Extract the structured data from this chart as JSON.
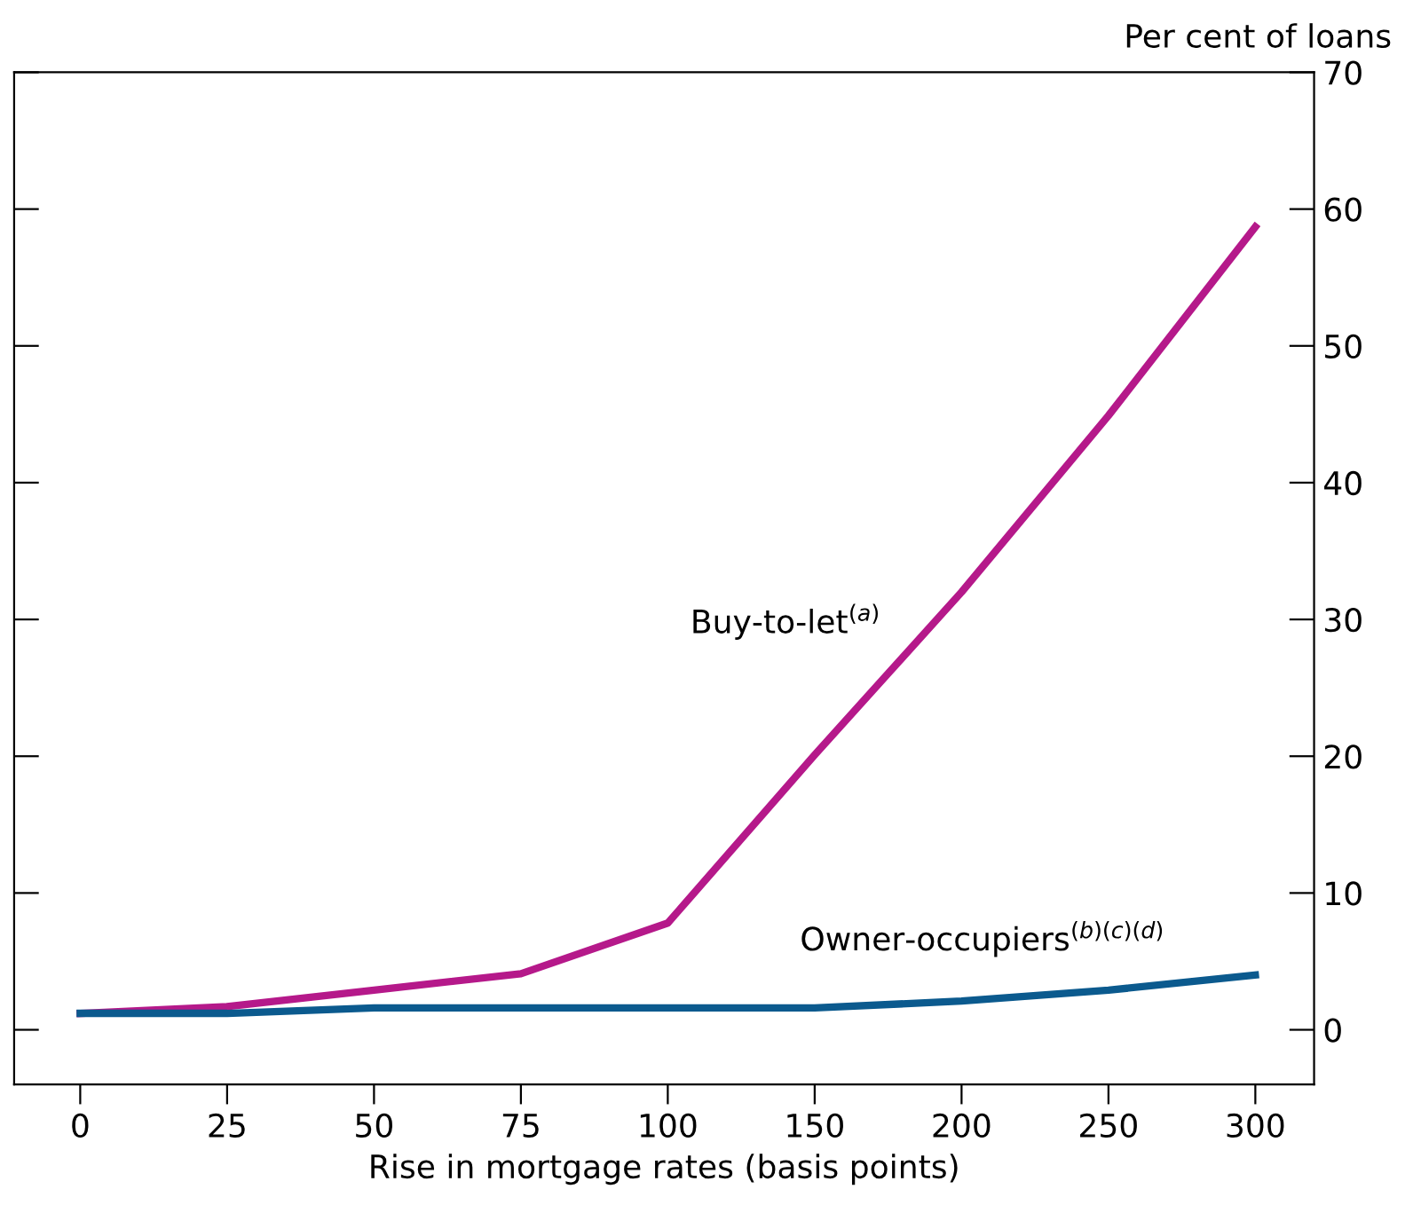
{
  "chart_data": {
    "type": "line",
    "xlabel": "Rise in mortgage rates (basis points)",
    "ylabel": "Per cent of loans",
    "categories": [
      "0",
      "25",
      "50",
      "75",
      "100",
      "150",
      "200",
      "250",
      "300"
    ],
    "series": [
      {
        "name": "Buy-to-let$^{(a)}$",
        "color": "#b5198a",
        "values": [
          1.2,
          1.7,
          2.9,
          4.1,
          7.8,
          20.1,
          32.0,
          44.9,
          58.7
        ]
      },
      {
        "name": "Owner-occupiers$^{(b)(c)(d)}$",
        "color": "#0b5a8e",
        "values": [
          1.2,
          1.2,
          1.6,
          1.6,
          1.6,
          1.6,
          2.1,
          2.9,
          4.0
        ]
      }
    ],
    "ylim": [
      -4,
      70
    ],
    "yticks": [
      0,
      10,
      20,
      30,
      40,
      50,
      60,
      70
    ],
    "grid": false,
    "legend": false,
    "marker": "none",
    "line_style": "solid"
  }
}
